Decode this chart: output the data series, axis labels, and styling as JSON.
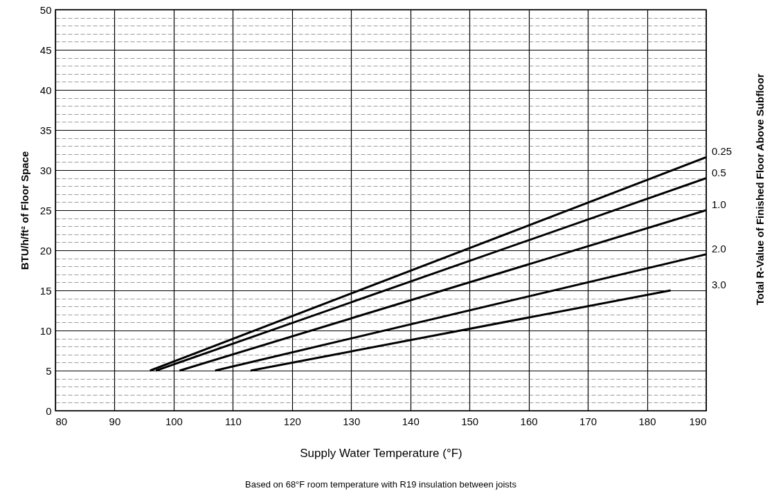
{
  "chart_data": {
    "type": "line",
    "xlabel": "Supply Water Temperature (°F)",
    "ylabel": "BTU/h/ft² of Floor Space",
    "annotations": [
      "Total R-Value of Finished Floor Above Subfloor",
      "Based on 68°F room temperature with R19 insulation between joists"
    ],
    "xlim": [
      80,
      190
    ],
    "xticks": [
      80,
      90,
      100,
      110,
      120,
      130,
      140,
      150,
      160,
      170,
      180,
      190
    ],
    "ylim": [
      0,
      50
    ],
    "yticks": [
      0,
      {
        "value": 1,
        "label": null
      },
      {
        "value": 2,
        "label": null
      },
      {
        "value": 3,
        "label": null
      },
      {
        "value": 4,
        "label": null
      },
      5,
      {
        "value": 6,
        "label": null
      },
      {
        "value": 7,
        "label": null
      },
      {
        "value": 8,
        "label": null
      },
      {
        "value": 9,
        "label": null
      },
      10,
      {
        "value": 11,
        "label": null
      },
      {
        "value": 12,
        "label": null
      },
      {
        "value": 13,
        "label": null
      },
      {
        "value": 14,
        "label": null
      },
      15,
      {
        "value": 16,
        "label": null
      },
      {
        "value": 17,
        "label": null
      },
      {
        "value": 18,
        "label": null
      },
      {
        "value": 19,
        "label": null
      },
      20,
      {
        "value": 21,
        "label": null
      },
      {
        "value": 22,
        "label": null
      },
      {
        "value": 23,
        "label": null
      },
      {
        "value": 24,
        "label": null
      },
      25,
      {
        "value": 26,
        "label": null
      },
      {
        "value": 27,
        "label": null
      },
      {
        "value": 28,
        "label": null
      },
      {
        "value": 29,
        "label": null
      },
      30,
      {
        "value": 31,
        "label": null
      },
      {
        "value": 32,
        "label": null
      },
      {
        "value": 33,
        "label": null
      },
      {
        "value": 34,
        "label": null
      },
      35,
      {
        "value": 36,
        "label": null
      },
      {
        "value": 37,
        "label": null
      },
      {
        "value": 38,
        "label": null
      },
      {
        "value": 39,
        "label": null
      },
      40,
      {
        "value": 41,
        "label": null
      },
      {
        "value": 42,
        "label": null
      },
      {
        "value": 43,
        "label": null
      },
      {
        "value": 44,
        "label": null
      },
      45,
      {
        "value": 46,
        "label": null
      },
      {
        "value": 47,
        "label": null
      },
      {
        "value": 48,
        "label": null
      },
      {
        "value": 49,
        "label": null
      },
      50
    ],
    "grid": true,
    "marker": "none",
    "line_style": "solid",
    "series": [
      {
        "name": "0.25",
        "color": "#000000",
        "x": [
          96,
          190
        ],
        "values": [
          5,
          31.6
        ]
      },
      {
        "name": "0.5",
        "color": "#000000",
        "x": [
          97,
          190
        ],
        "values": [
          5,
          29
        ]
      },
      {
        "name": "1.0",
        "color": "#000000",
        "x": [
          101,
          190
        ],
        "values": [
          5,
          25
        ]
      },
      {
        "name": "2.0",
        "color": "#000000",
        "x": [
          107,
          190
        ],
        "values": [
          5,
          19.5
        ]
      },
      {
        "name": "3.0",
        "color": "#000000",
        "x": [
          113,
          184
        ],
        "values": [
          5,
          15
        ]
      }
    ]
  }
}
